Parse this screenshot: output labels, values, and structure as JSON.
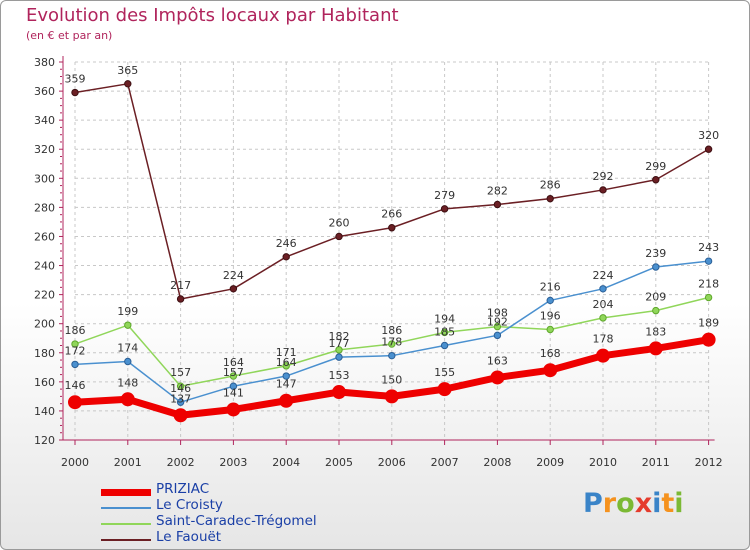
{
  "header": {
    "title": "Evolution des Impôts locaux par Habitant",
    "subtitle": "(en € et par an)"
  },
  "logo": {
    "letters": [
      "P",
      "r",
      "o",
      "x",
      "i",
      "t",
      "i"
    ],
    "colors": [
      "#3a84c8",
      "#f5921e",
      "#7bb934",
      "#e53b2c",
      "#3a84c8",
      "#f5921e",
      "#7bb934"
    ]
  },
  "chart_data": {
    "type": "line",
    "title": "Evolution des Impôts locaux par Habitant",
    "subtitle": "(en € et par an)",
    "xlabel": "",
    "ylabel": "",
    "x": [
      "2000",
      "2001",
      "2002",
      "2003",
      "2004",
      "2005",
      "2006",
      "2007",
      "2008",
      "2009",
      "2010",
      "2011",
      "2012"
    ],
    "ylim": [
      120,
      380
    ],
    "yticks": [
      120,
      140,
      160,
      180,
      200,
      220,
      240,
      260,
      280,
      300,
      320,
      340,
      360,
      380
    ],
    "grid": true,
    "legend_position": "bottom-left",
    "series": [
      {
        "name": "Le Faouët",
        "color": "#6b1f24",
        "labels_visible": true,
        "values": [
          359,
          365,
          217,
          224,
          246,
          260,
          266,
          279,
          282,
          286,
          292,
          299,
          320
        ]
      },
      {
        "name": "Saint-Caradec-Trégomel",
        "color": "#90d65a",
        "labels_visible": true,
        "values": [
          186,
          199,
          157,
          164,
          171,
          182,
          186,
          194,
          198,
          196,
          204,
          209,
          218
        ]
      },
      {
        "name": "Le Croisty",
        "color": "#4a90cf",
        "labels_visible": true,
        "values": [
          172,
          174,
          146,
          157,
          164,
          177,
          178,
          185,
          192,
          216,
          224,
          239,
          243
        ]
      },
      {
        "name": "PRIZIAC",
        "color": "#ee0000",
        "labels_visible": true,
        "values": [
          146,
          148,
          137,
          141,
          147,
          153,
          150,
          155,
          163,
          168,
          178,
          183,
          189
        ]
      }
    ],
    "legend": [
      "PRIZIAC",
      "Le Croisty",
      "Saint-Caradec-Trégomel",
      "Le Faouët"
    ]
  }
}
